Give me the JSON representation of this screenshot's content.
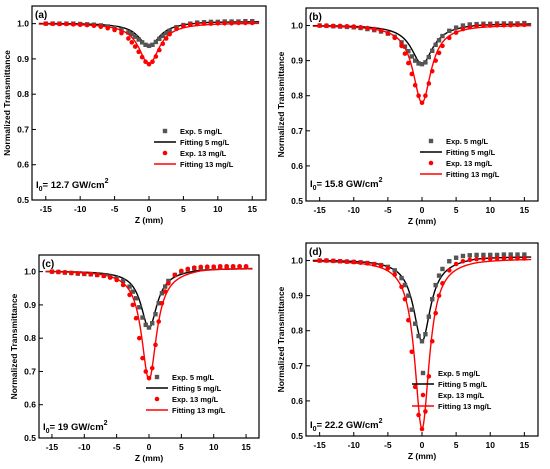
{
  "chart_data": [
    {
      "type": "scatter",
      "panel_label": "(a)",
      "intensity": {
        "base": "I",
        "sub": "0",
        "mid": "= 12.7 GW/cm",
        "sup": "2"
      },
      "xlabel": "Z (mm)",
      "ylabel": "Normalized Transmittance",
      "xlim": [
        -17,
        17
      ],
      "ylim": [
        0.5,
        1.05
      ],
      "xticks": [
        -15,
        -10,
        -5,
        0,
        5,
        10,
        15
      ],
      "yticks": [
        0.5,
        0.6,
        0.7,
        0.8,
        0.9,
        1.0
      ],
      "legend": [
        "Exp.  5 mg/L",
        "Fitting 5 mg/L",
        "Exp. 13 mg/L",
        "Fitting 13 mg/L"
      ],
      "fit_5": {
        "min": 0.935,
        "width": 1.8,
        "asym": 0.006
      },
      "fit_13": {
        "min": 0.885,
        "width": 1.8,
        "asym": 0.002
      },
      "series": [
        {
          "name": "Exp.  5 mg/L",
          "marker": "square",
          "color": "#555555",
          "x": [
            -15,
            -14,
            -13,
            -12,
            -11,
            -10,
            -9,
            -8,
            -7,
            -6,
            -5,
            -4,
            -3,
            -2.5,
            -2,
            -1.5,
            -1,
            -0.5,
            0,
            0.5,
            1,
            1.5,
            2,
            2.5,
            3,
            4,
            5,
            6,
            7,
            8,
            9,
            10,
            11,
            12,
            13,
            14,
            15
          ],
          "y": [
            1.0,
            1.0,
            1.0,
            1.0,
            1.0,
            0.999,
            0.998,
            0.997,
            0.995,
            0.992,
            0.988,
            0.983,
            0.975,
            0.97,
            0.963,
            0.955,
            0.947,
            0.94,
            0.937,
            0.94,
            0.948,
            0.957,
            0.965,
            0.973,
            0.98,
            0.99,
            0.996,
            1.0,
            1.003,
            1.004,
            1.005,
            1.005,
            1.006,
            1.006,
            1.006,
            1.007,
            1.007
          ]
        },
        {
          "name": "Exp. 13 mg/L",
          "marker": "circle",
          "color": "#ff0000",
          "x": [
            -15,
            -14,
            -13,
            -12,
            -11,
            -10,
            -9,
            -8,
            -7,
            -6,
            -5,
            -4,
            -3,
            -2.5,
            -2,
            -1.5,
            -1,
            -0.5,
            0,
            0.5,
            1,
            1.5,
            2,
            2.5,
            3,
            4,
            5,
            6,
            7,
            8,
            9,
            10,
            11,
            12,
            13,
            14,
            15
          ],
          "y": [
            1.0,
            1.0,
            0.999,
            0.999,
            0.998,
            0.997,
            0.996,
            0.994,
            0.991,
            0.987,
            0.982,
            0.973,
            0.958,
            0.947,
            0.935,
            0.92,
            0.905,
            0.892,
            0.885,
            0.892,
            0.907,
            0.925,
            0.943,
            0.958,
            0.97,
            0.985,
            0.993,
            0.997,
            0.999,
            1.0,
            1.0,
            1.001,
            1.001,
            1.001,
            1.002,
            1.002,
            1.002
          ]
        }
      ]
    },
    {
      "type": "scatter",
      "panel_label": "(b)",
      "intensity": {
        "base": "I",
        "sub": "0",
        "mid": "= 15.8 GW/cm",
        "sup": "2"
      },
      "xlabel": "Z (mm)",
      "ylabel": "Normalized Transmittance",
      "xlim": [
        -17,
        17
      ],
      "ylim": [
        0.5,
        1.05
      ],
      "xticks": [
        -15,
        -10,
        -5,
        0,
        5,
        10,
        15
      ],
      "yticks": [
        0.5,
        0.6,
        0.7,
        0.8,
        0.9,
        1.0
      ],
      "legend": [
        "Exp.  5 mg/L",
        "Fitting 5 mg/L",
        "Exp. 13 mg/L",
        "Fitting 13 mg/L"
      ],
      "fit_5": {
        "min": 0.89,
        "width": 1.9,
        "asym": 0.006
      },
      "fit_13": {
        "min": 0.78,
        "width": 1.6,
        "asym": 0.002
      },
      "series": [
        {
          "name": "Exp.  5 mg/L",
          "marker": "square",
          "color": "#555555",
          "x": [
            -15,
            -14,
            -13,
            -12,
            -11,
            -10,
            -9,
            -8,
            -7,
            -6,
            -5,
            -4,
            -3,
            -2.5,
            -2,
            -1.5,
            -1,
            -0.5,
            0,
            0.5,
            1,
            1.5,
            2,
            2.5,
            3,
            4,
            5,
            6,
            7,
            8,
            9,
            10,
            11,
            12,
            13,
            14,
            15
          ],
          "y": [
            1.0,
            0.999,
            0.998,
            0.997,
            0.996,
            0.995,
            0.993,
            0.99,
            0.987,
            0.983,
            0.977,
            0.968,
            0.952,
            0.94,
            0.927,
            0.912,
            0.9,
            0.892,
            0.89,
            0.895,
            0.91,
            0.928,
            0.945,
            0.958,
            0.97,
            0.985,
            0.994,
            1.0,
            1.003,
            1.004,
            1.005,
            1.005,
            1.006,
            1.006,
            1.006,
            1.006,
            1.007
          ]
        },
        {
          "name": "Exp. 13 mg/L",
          "marker": "circle",
          "color": "#ff0000",
          "x": [
            -15,
            -14,
            -13,
            -12,
            -11,
            -10,
            -9,
            -8,
            -7,
            -6,
            -5,
            -4,
            -3,
            -2.5,
            -2,
            -1.5,
            -1,
            -0.5,
            0,
            0.5,
            1,
            1.5,
            2,
            2.5,
            3,
            4,
            5,
            6,
            7,
            8,
            9,
            10,
            11,
            12,
            13,
            14,
            15
          ],
          "y": [
            1.0,
            1.0,
            0.999,
            0.999,
            0.998,
            0.997,
            0.995,
            0.993,
            0.99,
            0.985,
            0.978,
            0.965,
            0.942,
            0.92,
            0.893,
            0.862,
            0.83,
            0.8,
            0.78,
            0.8,
            0.835,
            0.87,
            0.9,
            0.922,
            0.942,
            0.965,
            0.98,
            0.99,
            0.995,
            0.998,
            1.0,
            1.0,
            1.001,
            1.001,
            1.001,
            1.002,
            1.002
          ]
        }
      ]
    },
    {
      "type": "scatter",
      "panel_label": "(c)",
      "intensity": {
        "base": "I",
        "sub": "0",
        "mid": "= 19 GW/cm",
        "sup": "2"
      },
      "xlabel": "Z (mm)",
      "ylabel": "Normalized Transmittance",
      "xlim": [
        -17,
        17
      ],
      "ylim": [
        0.5,
        1.05
      ],
      "xticks": [
        -15,
        -10,
        -5,
        0,
        5,
        10,
        15
      ],
      "yticks": [
        0.5,
        0.6,
        0.7,
        0.8,
        0.9,
        1.0
      ],
      "legend": [
        "Exp.  5 mg/L",
        "Fitting 5 mg/L",
        "Exp. 13 mg/L",
        "Fitting 13 mg/L"
      ],
      "fit_5": {
        "min": 0.83,
        "width": 1.5,
        "asym": 0.01
      },
      "fit_13": {
        "min": 0.675,
        "width": 1.4,
        "asym": 0.012
      },
      "series": [
        {
          "name": "Exp.  5 mg/L",
          "marker": "square",
          "color": "#555555",
          "x": [
            -15,
            -14,
            -13,
            -12,
            -11,
            -10,
            -9,
            -8,
            -7,
            -6,
            -5,
            -4,
            -3,
            -2.5,
            -2,
            -1.5,
            -1,
            -0.5,
            0,
            0.5,
            1,
            1.5,
            2,
            2.5,
            3,
            4,
            5,
            6,
            7,
            8,
            9,
            10,
            11,
            12,
            13,
            14,
            15
          ],
          "y": [
            1.0,
            0.999,
            0.997,
            0.996,
            0.994,
            0.993,
            0.992,
            0.99,
            0.988,
            0.985,
            0.98,
            0.972,
            0.955,
            0.94,
            0.92,
            0.893,
            0.862,
            0.84,
            0.832,
            0.845,
            0.872,
            0.905,
            0.935,
            0.955,
            0.972,
            0.99,
            1.0,
            1.006,
            1.01,
            1.011,
            1.012,
            1.012,
            1.013,
            1.013,
            1.013,
            1.013,
            1.013
          ]
        },
        {
          "name": "Exp. 13 mg/L",
          "marker": "circle",
          "color": "#ff0000",
          "x": [
            -15,
            -14,
            -13,
            -12,
            -11,
            -10,
            -9,
            -8,
            -7,
            -6,
            -5,
            -4,
            -3,
            -2.5,
            -2,
            -1.5,
            -1,
            -0.5,
            0,
            0.5,
            1,
            1.5,
            2,
            2.5,
            3,
            4,
            5,
            6,
            7,
            8,
            9,
            10,
            11,
            12,
            13,
            14,
            15
          ],
          "y": [
            1.0,
            0.999,
            0.998,
            0.996,
            0.995,
            0.994,
            0.992,
            0.99,
            0.987,
            0.982,
            0.975,
            0.96,
            0.93,
            0.9,
            0.86,
            0.8,
            0.74,
            0.7,
            0.68,
            0.71,
            0.78,
            0.85,
            0.905,
            0.94,
            0.965,
            0.99,
            1.002,
            1.008,
            1.012,
            1.014,
            1.015,
            1.015,
            1.016,
            1.016,
            1.016,
            1.016,
            1.016
          ]
        }
      ]
    },
    {
      "type": "scatter",
      "panel_label": "(d)",
      "intensity": {
        "base": "I",
        "sub": "0",
        "mid": "= 22.2 GW/cm",
        "sup": "2"
      },
      "xlabel": "Z (mm)",
      "ylabel": "Normalized Transmittance",
      "xlim": [
        -17,
        17
      ],
      "ylim": [
        0.5,
        1.05
      ],
      "xticks": [
        -15,
        -10,
        -5,
        0,
        5,
        10,
        15
      ],
      "yticks": [
        0.5,
        0.6,
        0.7,
        0.8,
        0.9,
        1.0
      ],
      "legend": [
        "Exp.  5 mg/L",
        "Fitting 5 mg/L",
        "Exp. 13 mg/L",
        "Fitting 13 mg/L"
      ],
      "fit_5": {
        "min": 0.77,
        "width": 1.5,
        "asym": 0.012
      },
      "fit_13": {
        "min": 0.52,
        "width": 1.3,
        "asym": 0.006
      },
      "series": [
        {
          "name": "Exp.  5 mg/L",
          "marker": "square",
          "color": "#555555",
          "x": [
            -15,
            -14,
            -13,
            -12,
            -11,
            -10,
            -9,
            -8,
            -7,
            -6,
            -5,
            -4,
            -3,
            -2.5,
            -2,
            -1.5,
            -1,
            -0.5,
            0,
            0.5,
            1,
            1.5,
            2,
            2.5,
            3,
            4,
            5,
            6,
            7,
            8,
            9,
            10,
            11,
            12,
            13,
            14,
            15
          ],
          "y": [
            1.0,
            1.0,
            0.999,
            0.998,
            0.997,
            0.996,
            0.995,
            0.993,
            0.99,
            0.987,
            0.982,
            0.972,
            0.95,
            0.93,
            0.9,
            0.86,
            0.82,
            0.785,
            0.77,
            0.79,
            0.84,
            0.89,
            0.93,
            0.957,
            0.976,
            0.998,
            1.008,
            1.013,
            1.015,
            1.016,
            1.016,
            1.016,
            1.016,
            1.017,
            1.017,
            1.017,
            1.017
          ]
        },
        {
          "name": "Exp. 13 mg/L",
          "marker": "circle",
          "color": "#ff0000",
          "x": [
            -15,
            -14,
            -13,
            -12,
            -11,
            -10,
            -9,
            -8,
            -7,
            -6,
            -5,
            -4,
            -3,
            -2.5,
            -2,
            -1.5,
            -1,
            -0.5,
            0,
            0.5,
            1,
            1.5,
            2,
            2.5,
            3,
            4,
            5,
            6,
            7,
            8,
            9,
            10,
            11,
            12,
            13,
            14,
            15
          ],
          "y": [
            1.0,
            1.0,
            0.999,
            0.998,
            0.997,
            0.996,
            0.994,
            0.992,
            0.989,
            0.985,
            0.978,
            0.96,
            0.925,
            0.89,
            0.83,
            0.74,
            0.64,
            0.56,
            0.52,
            0.57,
            0.67,
            0.77,
            0.85,
            0.9,
            0.935,
            0.972,
            0.99,
            0.998,
            1.002,
            1.004,
            1.005,
            1.005,
            1.006,
            1.006,
            1.006,
            1.006,
            1.006
          ]
        }
      ]
    }
  ],
  "colors": {
    "exp5": "#555555",
    "fit5": "#000000",
    "exp13": "#ff0000",
    "fit13": "#ff0000"
  }
}
